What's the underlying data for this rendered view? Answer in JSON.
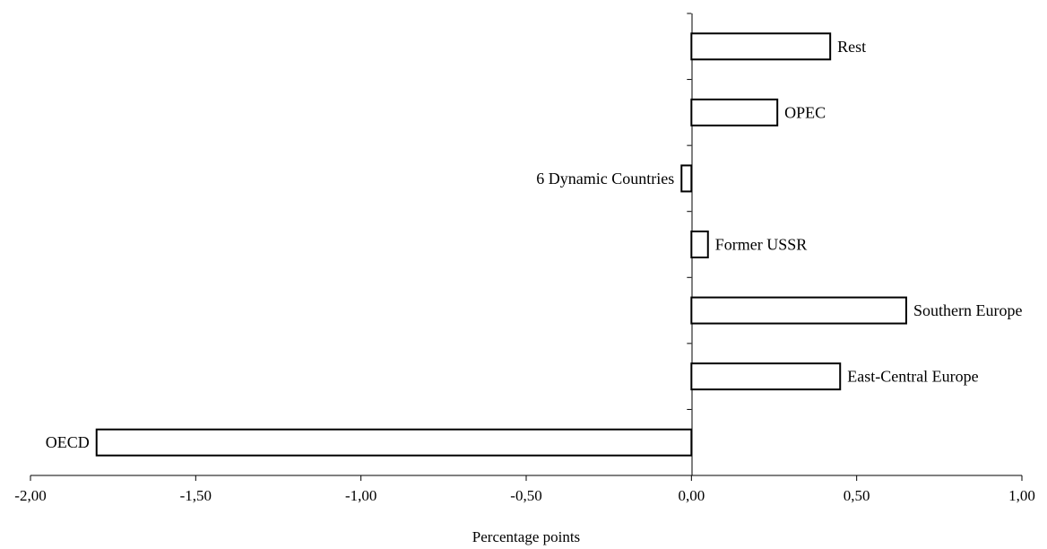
{
  "chart_data": {
    "type": "bar",
    "orientation": "horizontal",
    "title": "",
    "xlabel": "Percentage points",
    "ylabel": "",
    "xlim": [
      -2.0,
      1.0
    ],
    "xticks": [
      -2.0,
      -1.5,
      -1.0,
      -0.5,
      0.0,
      0.5,
      1.0
    ],
    "xtick_labels": [
      "-2,00",
      "-1,50",
      "-1,00",
      "-0,50",
      "0,00",
      "0,50",
      "1,00"
    ],
    "grid": false,
    "legend": false,
    "categories": [
      "OECD",
      "East-Central Europe",
      "Southern Europe",
      "Former USSR",
      "6 Dynamic Countries",
      "OPEC",
      "Rest"
    ],
    "values": [
      -1.8,
      0.45,
      0.65,
      0.05,
      -0.03,
      0.26,
      0.42
    ],
    "colors": {
      "bar_fill": "#ffffff",
      "bar_stroke": "#000000",
      "axis": "#000000"
    }
  }
}
